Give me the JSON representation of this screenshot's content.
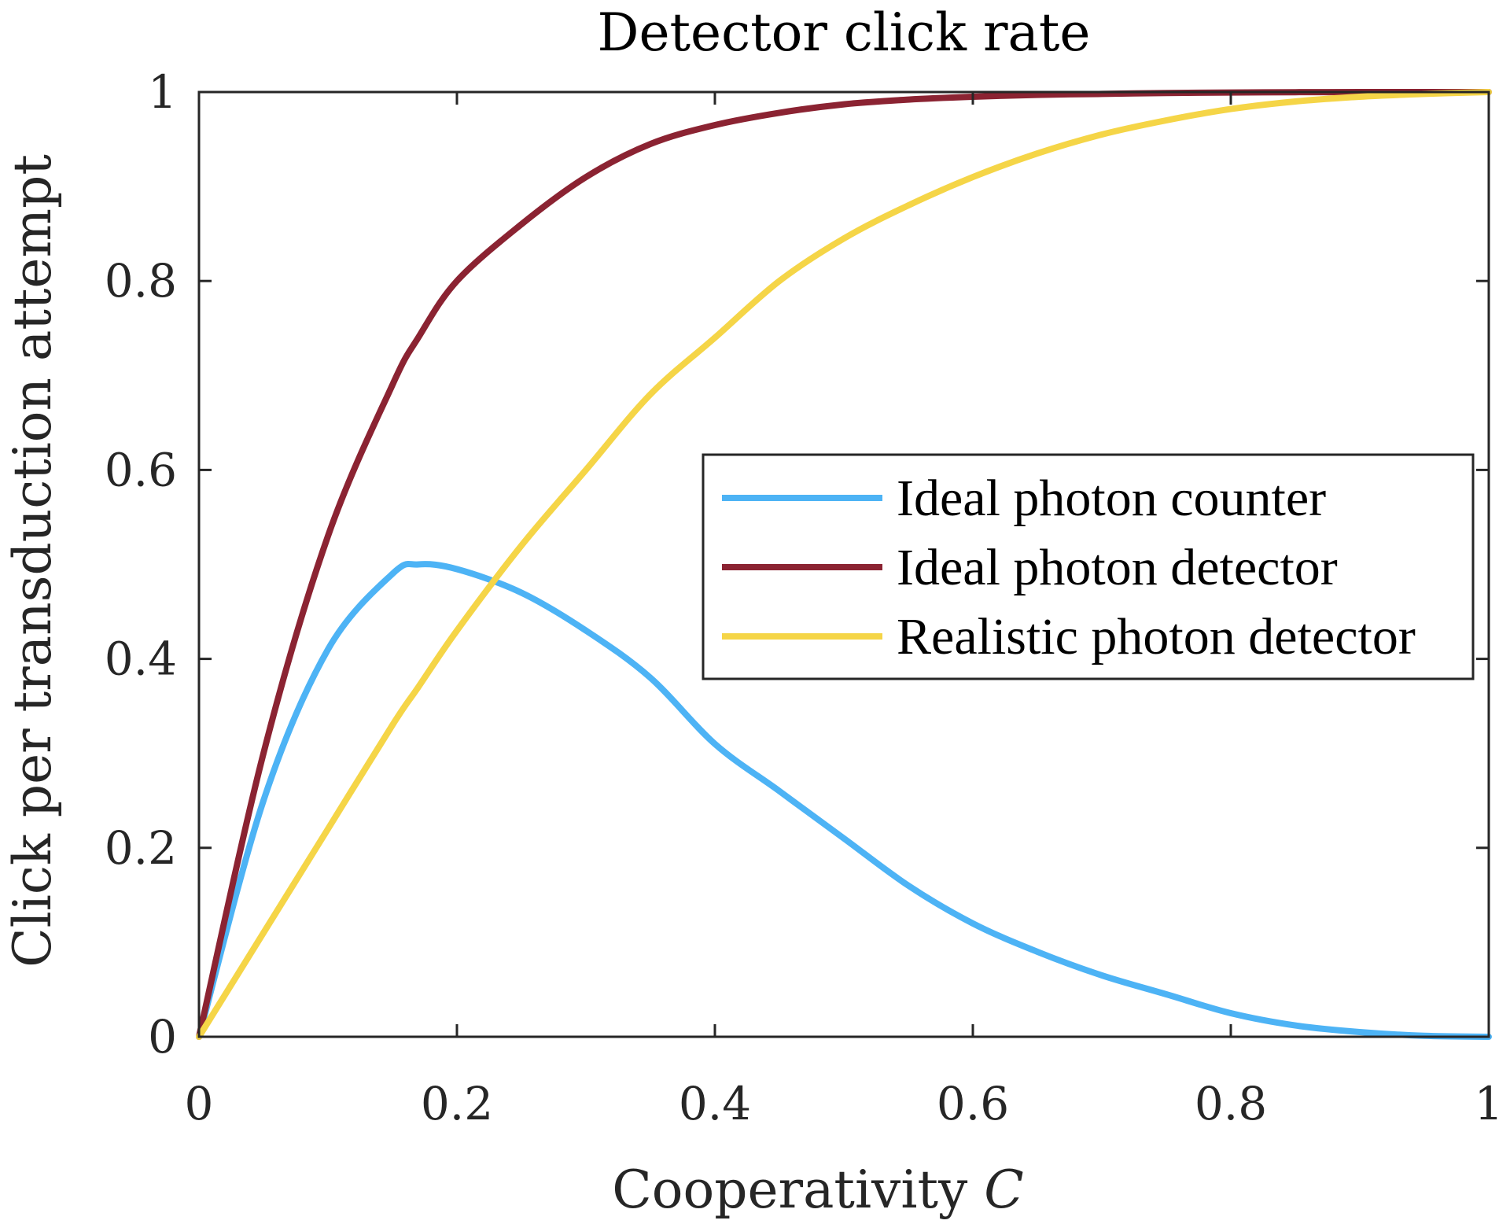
{
  "chart_data": {
    "type": "line",
    "title": "Detector click rate",
    "xlabel": "Cooperativity",
    "xlabel_symbol": "C",
    "ylabel": "Click per transduction attempt",
    "xlim": [
      0,
      1
    ],
    "ylim": [
      0,
      1
    ],
    "x_ticks": [
      "0",
      "0.2",
      "0.4",
      "0.6",
      "0.8",
      "1"
    ],
    "y_ticks": [
      "0",
      "0.2",
      "0.4",
      "0.6",
      "0.8",
      "1"
    ],
    "x_tick_values": [
      0,
      0.2,
      0.4,
      0.6,
      0.8,
      1
    ],
    "y_tick_values": [
      0,
      0.2,
      0.4,
      0.6,
      0.8,
      1
    ],
    "grid": false,
    "legend_position": "right",
    "x": [
      0,
      0.05,
      0.1,
      0.15,
      0.17,
      0.2,
      0.25,
      0.3,
      0.35,
      0.4,
      0.45,
      0.5,
      0.55,
      0.6,
      0.65,
      0.7,
      0.75,
      0.8,
      0.85,
      0.9,
      0.95,
      1.0
    ],
    "series": [
      {
        "name": "Ideal photon counter",
        "color": "#4DB3F5",
        "values": [
          0,
          0.25,
          0.41,
          0.49,
          0.5,
          0.495,
          0.47,
          0.43,
          0.38,
          0.31,
          0.26,
          0.21,
          0.16,
          0.12,
          0.09,
          0.065,
          0.045,
          0.025,
          0.012,
          0.005,
          0.001,
          0
        ]
      },
      {
        "name": "Ideal photon detector",
        "color": "#8B2332",
        "values": [
          0,
          0.3,
          0.53,
          0.69,
          0.74,
          0.8,
          0.86,
          0.91,
          0.945,
          0.965,
          0.978,
          0.987,
          0.992,
          0.995,
          0.997,
          0.998,
          0.999,
          0.9995,
          0.9998,
          1.0,
          1.0,
          1.0
        ]
      },
      {
        "name": "Realistic photon detector",
        "color": "#F5D547",
        "values": [
          0,
          0.11,
          0.22,
          0.33,
          0.37,
          0.43,
          0.52,
          0.6,
          0.68,
          0.74,
          0.8,
          0.845,
          0.88,
          0.91,
          0.935,
          0.955,
          0.97,
          0.982,
          0.99,
          0.995,
          0.998,
          1.0
        ]
      }
    ]
  }
}
